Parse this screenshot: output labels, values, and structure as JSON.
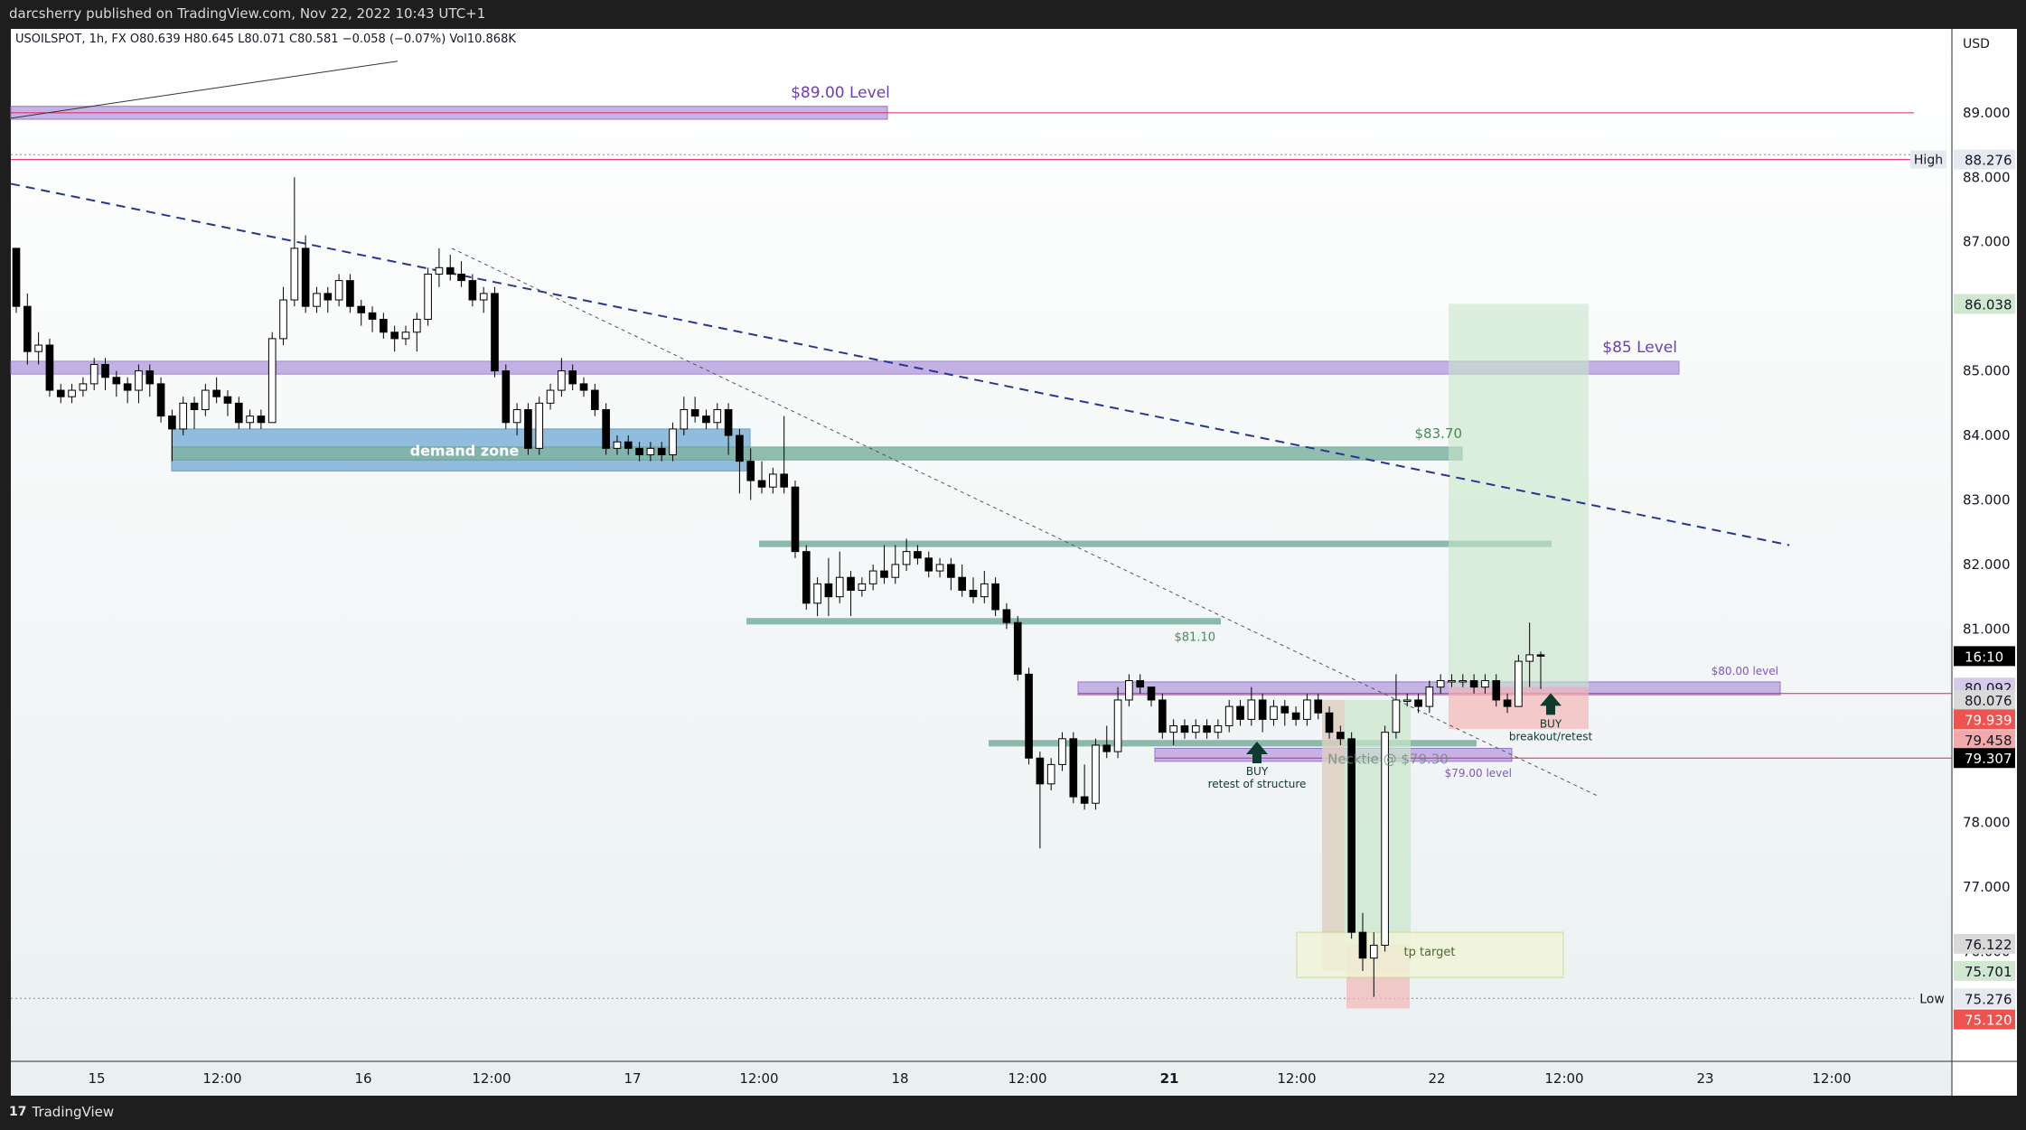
{
  "header": {
    "published_by": "darcsherry published on TradingView.com, Nov 22, 2022 10:43 UTC+1"
  },
  "brand": {
    "name": "TradingView"
  },
  "legend": {
    "text": "USOILSPOT, 1h, FX  O80.639  H80.645  L80.071  C80.581  −0.058 (−0.07%)  Vol10.868K"
  },
  "chart_data": {
    "type": "candlestick",
    "symbol": "USOILSPOT",
    "timeframe": "1h",
    "currency": "USD",
    "ylim": [
      74.3,
      90.3
    ],
    "y_ticks": [
      "89.000",
      "88.000",
      "87.000",
      "86.000",
      "85.000",
      "84.000",
      "83.000",
      "82.000",
      "81.000",
      "80.000",
      "79.000",
      "78.000",
      "77.000",
      "76.000",
      "75.000"
    ],
    "x_ticks": [
      "15",
      "12:00",
      "16",
      "12:00",
      "17",
      "12:00",
      "18",
      "12:00",
      "21",
      "12:00",
      "22",
      "12:00",
      "23",
      "12:00"
    ],
    "candles": [
      [
        86.9,
        86.0,
        86.9,
        85.9
      ],
      [
        86.0,
        85.3,
        86.2,
        85.1
      ],
      [
        85.3,
        85.4,
        85.6,
        85.1
      ],
      [
        85.4,
        84.7,
        85.5,
        84.6
      ],
      [
        84.7,
        84.6,
        84.8,
        84.5
      ],
      [
        84.6,
        84.7,
        84.8,
        84.5
      ],
      [
        84.7,
        84.8,
        84.9,
        84.6
      ],
      [
        84.8,
        85.1,
        85.2,
        84.7
      ],
      [
        85.1,
        84.9,
        85.2,
        84.7
      ],
      [
        84.9,
        84.8,
        85.0,
        84.6
      ],
      [
        84.8,
        84.7,
        84.9,
        84.5
      ],
      [
        84.7,
        85.0,
        85.1,
        84.5
      ],
      [
        85.0,
        84.8,
        85.1,
        84.6
      ],
      [
        84.8,
        84.3,
        84.9,
        84.2
      ],
      [
        84.3,
        84.1,
        84.4,
        83.6
      ],
      [
        84.1,
        84.5,
        84.6,
        84.0
      ],
      [
        84.5,
        84.4,
        84.6,
        84.1
      ],
      [
        84.4,
        84.7,
        84.8,
        84.3
      ],
      [
        84.7,
        84.6,
        84.9,
        84.5
      ],
      [
        84.6,
        84.5,
        84.7,
        84.3
      ],
      [
        84.5,
        84.2,
        84.6,
        84.1
      ],
      [
        84.2,
        84.3,
        84.4,
        84.1
      ],
      [
        84.3,
        84.2,
        84.4,
        84.1
      ],
      [
        84.2,
        85.5,
        85.6,
        84.2
      ],
      [
        85.5,
        86.1,
        86.3,
        85.4
      ],
      [
        86.1,
        86.9,
        88.0,
        86.0
      ],
      [
        86.9,
        86.0,
        87.1,
        85.9
      ],
      [
        86.0,
        86.2,
        86.3,
        85.9
      ],
      [
        86.2,
        86.1,
        86.3,
        85.9
      ],
      [
        86.1,
        86.4,
        86.5,
        86.0
      ],
      [
        86.4,
        86.0,
        86.5,
        85.9
      ],
      [
        86.0,
        85.9,
        86.1,
        85.7
      ],
      [
        85.9,
        85.8,
        86.0,
        85.6
      ],
      [
        85.8,
        85.6,
        85.9,
        85.5
      ],
      [
        85.6,
        85.5,
        85.7,
        85.3
      ],
      [
        85.5,
        85.6,
        85.7,
        85.4
      ],
      [
        85.6,
        85.8,
        85.9,
        85.3
      ],
      [
        85.8,
        86.5,
        86.6,
        85.7
      ],
      [
        86.5,
        86.6,
        86.9,
        86.3
      ],
      [
        86.6,
        86.5,
        86.8,
        86.4
      ],
      [
        86.5,
        86.4,
        86.7,
        86.3
      ],
      [
        86.4,
        86.1,
        86.5,
        86.0
      ],
      [
        86.1,
        86.2,
        86.3,
        85.9
      ],
      [
        86.2,
        85.0,
        86.3,
        84.9
      ],
      [
        85.0,
        84.2,
        85.1,
        84.1
      ],
      [
        84.2,
        84.4,
        84.5,
        84.0
      ],
      [
        84.4,
        83.8,
        84.5,
        83.7
      ],
      [
        83.8,
        84.5,
        84.6,
        83.7
      ],
      [
        84.5,
        84.7,
        84.8,
        84.4
      ],
      [
        84.7,
        85.0,
        85.2,
        84.6
      ],
      [
        85.0,
        84.8,
        85.1,
        84.7
      ],
      [
        84.8,
        84.7,
        84.9,
        84.6
      ],
      [
        84.7,
        84.4,
        84.8,
        84.3
      ],
      [
        84.4,
        83.8,
        84.5,
        83.7
      ],
      [
        83.8,
        83.9,
        84.0,
        83.7
      ],
      [
        83.9,
        83.8,
        84.0,
        83.7
      ],
      [
        83.8,
        83.7,
        83.9,
        83.6
      ],
      [
        83.7,
        83.8,
        83.9,
        83.6
      ],
      [
        83.8,
        83.7,
        83.9,
        83.6
      ],
      [
        83.7,
        84.1,
        84.2,
        83.6
      ],
      [
        84.1,
        84.4,
        84.6,
        84.0
      ],
      [
        84.4,
        84.3,
        84.6,
        84.2
      ],
      [
        84.3,
        84.2,
        84.4,
        84.1
      ],
      [
        84.2,
        84.4,
        84.5,
        84.1
      ],
      [
        84.4,
        84.0,
        84.5,
        83.7
      ],
      [
        84.0,
        83.6,
        84.1,
        83.1
      ],
      [
        83.6,
        83.3,
        83.8,
        83.0
      ],
      [
        83.3,
        83.2,
        83.6,
        83.1
      ],
      [
        83.2,
        83.4,
        83.5,
        83.1
      ],
      [
        83.4,
        83.2,
        84.3,
        83.1
      ],
      [
        83.2,
        82.2,
        83.3,
        82.1
      ],
      [
        82.2,
        81.4,
        82.3,
        81.3
      ],
      [
        81.4,
        81.7,
        81.8,
        81.2
      ],
      [
        81.7,
        81.5,
        82.1,
        81.2
      ],
      [
        81.5,
        81.8,
        82.2,
        81.4
      ],
      [
        81.8,
        81.6,
        81.9,
        81.2
      ],
      [
        81.6,
        81.7,
        81.8,
        81.5
      ],
      [
        81.7,
        81.9,
        82.0,
        81.6
      ],
      [
        81.9,
        81.8,
        82.3,
        81.7
      ],
      [
        81.8,
        82.0,
        82.3,
        81.7
      ],
      [
        82.0,
        82.2,
        82.4,
        81.9
      ],
      [
        82.2,
        82.1,
        82.3,
        82.0
      ],
      [
        82.1,
        81.9,
        82.2,
        81.8
      ],
      [
        81.9,
        82.0,
        82.1,
        81.8
      ],
      [
        82.0,
        81.8,
        82.1,
        81.6
      ],
      [
        81.8,
        81.6,
        82.0,
        81.5
      ],
      [
        81.6,
        81.5,
        81.8,
        81.4
      ],
      [
        81.5,
        81.7,
        81.9,
        81.4
      ],
      [
        81.7,
        81.3,
        81.8,
        81.2
      ],
      [
        81.3,
        81.1,
        81.4,
        81.0
      ],
      [
        81.1,
        80.3,
        81.2,
        80.2
      ],
      [
        80.3,
        79.0,
        80.4,
        78.9
      ],
      [
        79.0,
        78.6,
        79.1,
        77.6
      ],
      [
        78.6,
        78.9,
        79.0,
        78.5
      ],
      [
        78.9,
        79.3,
        79.4,
        78.8
      ],
      [
        79.3,
        78.4,
        79.4,
        78.3
      ],
      [
        78.4,
        78.3,
        78.9,
        78.2
      ],
      [
        78.3,
        79.2,
        79.3,
        78.2
      ],
      [
        79.2,
        79.1,
        79.5,
        79.0
      ],
      [
        79.1,
        79.9,
        80.1,
        79.0
      ],
      [
        79.9,
        80.2,
        80.3,
        79.8
      ],
      [
        80.2,
        80.1,
        80.3,
        80.0
      ],
      [
        80.1,
        79.9,
        80.1,
        79.8
      ],
      [
        79.9,
        79.4,
        80.0,
        79.3
      ],
      [
        79.4,
        79.5,
        79.6,
        79.2
      ],
      [
        79.5,
        79.4,
        79.6,
        79.3
      ],
      [
        79.4,
        79.5,
        79.6,
        79.3
      ],
      [
        79.5,
        79.4,
        79.6,
        79.3
      ],
      [
        79.4,
        79.5,
        79.6,
        79.3
      ],
      [
        79.5,
        79.8,
        79.9,
        79.4
      ],
      [
        79.8,
        79.6,
        79.9,
        79.5
      ],
      [
        79.6,
        79.9,
        80.1,
        79.5
      ],
      [
        79.9,
        79.6,
        80.0,
        79.4
      ],
      [
        79.6,
        79.8,
        79.9,
        79.5
      ],
      [
        79.8,
        79.7,
        79.9,
        79.5
      ],
      [
        79.7,
        79.6,
        79.8,
        79.5
      ],
      [
        79.6,
        79.9,
        80.0,
        79.5
      ],
      [
        79.9,
        79.7,
        80.0,
        79.6
      ],
      [
        79.7,
        79.4,
        79.8,
        79.3
      ],
      [
        79.4,
        79.3,
        79.5,
        79.2
      ],
      [
        79.3,
        76.3,
        79.4,
        76.2
      ],
      [
        76.3,
        75.9,
        76.6,
        75.7
      ],
      [
        75.9,
        76.1,
        76.3,
        75.3
      ],
      [
        76.1,
        79.4,
        79.5,
        76.0
      ],
      [
        79.4,
        79.9,
        80.3,
        79.3
      ],
      [
        79.9,
        79.9,
        80.0,
        79.8
      ],
      [
        79.9,
        79.8,
        80.0,
        79.7
      ],
      [
        79.8,
        80.1,
        80.2,
        79.7
      ],
      [
        80.1,
        80.2,
        80.3,
        80.0
      ],
      [
        80.2,
        80.2,
        80.3,
        80.1
      ],
      [
        80.2,
        80.2,
        80.3,
        80.1
      ],
      [
        80.2,
        80.1,
        80.3,
        80.0
      ],
      [
        80.1,
        80.2,
        80.3,
        80.0
      ],
      [
        80.2,
        79.9,
        80.3,
        79.8
      ],
      [
        79.9,
        79.8,
        80.0,
        79.7
      ],
      [
        79.8,
        80.5,
        80.6,
        79.8
      ],
      [
        80.5,
        80.6,
        81.1,
        80.1
      ],
      [
        80.6,
        80.58,
        80.65,
        80.07
      ]
    ],
    "levels": [
      {
        "label": "$89.00 Level",
        "price": 89.0
      },
      {
        "label": "$85 Level",
        "price": 85.0
      },
      {
        "label": "$83.70",
        "price": 83.7
      },
      {
        "label": "$81.10",
        "price": 81.1
      },
      {
        "label": "$80.00 level",
        "price": 80.0
      },
      {
        "label": "$79.00 level",
        "price": 79.0
      }
    ],
    "zone_labels": {
      "demand_zone": "demand zone",
      "tp_target": "tp target",
      "necktie": "Necktie @ $79.30",
      "buy1": "BUY",
      "buy1_sub": "retest of structure",
      "buy2": "BUY",
      "buy2_sub": "breakout/retest",
      "high": "High",
      "low": "Low"
    },
    "price_labels": [
      {
        "text": "88.276",
        "price": 88.276,
        "bg": "#e6e9ef",
        "fg": "#131722"
      },
      {
        "text": "86.038",
        "price": 86.038,
        "bg": "#cfe8cf",
        "fg": "#131722"
      },
      {
        "text": "16:10",
        "price": 80.58,
        "bg": "#000000",
        "fg": "#ffffff"
      },
      {
        "text": "80.092",
        "price": 80.092,
        "bg": "#d6c9ea",
        "fg": "#131722"
      },
      {
        "text": "80.076",
        "price": 79.9,
        "bg": "#d9d9d9",
        "fg": "#131722"
      },
      {
        "text": "79.939",
        "price": 79.6,
        "bg": "#ef5350",
        "fg": "#ffffff"
      },
      {
        "text": "79.458",
        "price": 79.28,
        "bg": "#f3a9a9",
        "fg": "#131722"
      },
      {
        "text": "79.307",
        "price": 79.0,
        "bg": "#000000",
        "fg": "#ffffff"
      },
      {
        "text": "76.122",
        "price": 76.122,
        "bg": "#d9d9d9",
        "fg": "#131722"
      },
      {
        "text": "75.701",
        "price": 75.701,
        "bg": "#cfe8cf",
        "fg": "#131722"
      },
      {
        "text": "75.276",
        "price": 75.276,
        "bg": "#e6e9ef",
        "fg": "#131722"
      },
      {
        "text": "75.120",
        "price": 74.95,
        "bg": "#ef5350",
        "fg": "#ffffff"
      }
    ],
    "axis_label": "USD",
    "colors": {
      "up_fill": "#ffffff",
      "down_fill": "#000000",
      "wick": "#000000",
      "level_purple": "#b39ddb",
      "teal": "#80b3a3",
      "blue_zone": "#7fb3d9",
      "green_zone": "#c8e6c9",
      "red_zone": "#f4b6b6",
      "trend_blue": "#283593"
    }
  }
}
